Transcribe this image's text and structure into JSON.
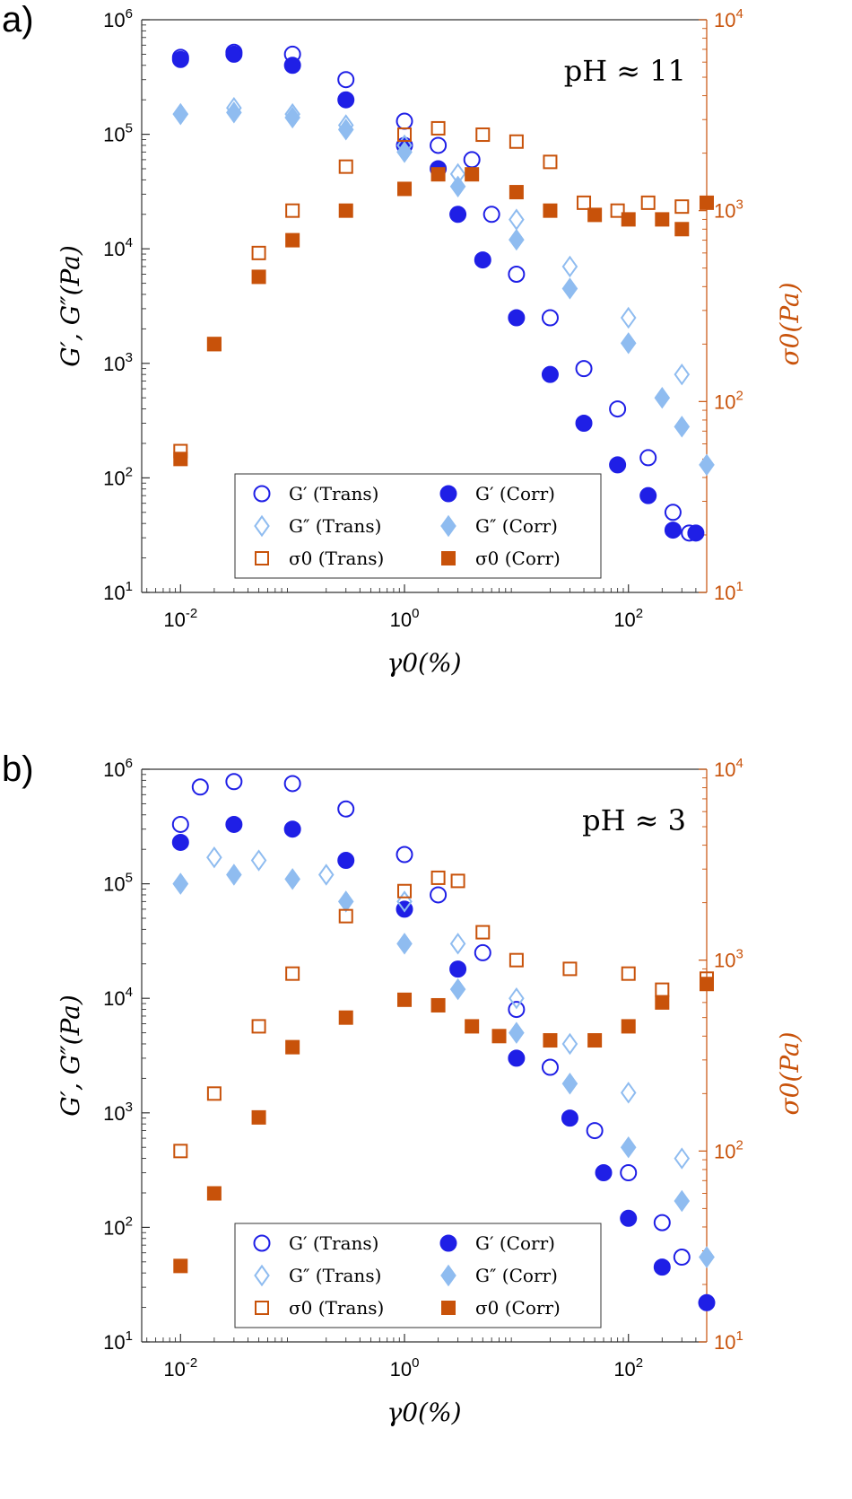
{
  "colors": {
    "g1": "#1f1fe6",
    "g2": "#8fbcf0",
    "sigma": "#c8520a",
    "axis": "#333333"
  },
  "chart_data": [
    {
      "panel_label": "a)",
      "type": "scatter",
      "annotation": "pH ≈ 11",
      "xlabel": "γ0(%)",
      "ylabel": "G′, G″(Pa)",
      "ylabel_right": "σ0(Pa)",
      "x_scale": "log",
      "y_scale": "log",
      "xlim": [
        0.0045,
        500
      ],
      "ylim": [
        10,
        1000000
      ],
      "ylim_right": [
        10,
        10000
      ],
      "x_ticks": [
        {
          "v": 0.01,
          "label": "10-2"
        },
        {
          "v": 1,
          "label": "10^0"
        },
        {
          "v": 100,
          "label": "10^2"
        }
      ],
      "y_ticks": [
        {
          "v": 10,
          "label": "10^1"
        },
        {
          "v": 100,
          "label": "10^2"
        },
        {
          "v": 1000,
          "label": "10^3"
        },
        {
          "v": 10000,
          "label": "10^4"
        },
        {
          "v": 100000,
          "label": "10^5"
        },
        {
          "v": 1000000,
          "label": "10^6"
        }
      ],
      "y_right_ticks": [
        {
          "v": 10,
          "label": "10^1"
        },
        {
          "v": 100,
          "label": "10^2"
        },
        {
          "v": 1000,
          "label": "10^3"
        },
        {
          "v": 10000,
          "label": "10^4"
        }
      ],
      "legend": [
        {
          "key": "gp_trans",
          "text": "G′ (Trans)"
        },
        {
          "key": "gp_corr",
          "text": "G′ (Corr)"
        },
        {
          "key": "gpp_trans",
          "text": "G″ (Trans)"
        },
        {
          "key": "gpp_corr",
          "text": "G″ (Corr)"
        },
        {
          "key": "s_trans",
          "text": "σ0 (Trans)"
        },
        {
          "key": "s_corr",
          "text": "σ0 (Corr)"
        }
      ],
      "series": [
        {
          "key": "gp_trans",
          "name": "G′ (Trans)",
          "axis": "left",
          "marker": "circle-open",
          "color_key": "g1",
          "points": [
            [
              0.01,
              470000
            ],
            [
              0.03,
              520000
            ],
            [
              0.1,
              500000
            ],
            [
              0.3,
              300000
            ],
            [
              1,
              130000
            ],
            [
              2,
              80000
            ],
            [
              4,
              60000
            ],
            [
              6,
              20000
            ],
            [
              10,
              6000
            ],
            [
              20,
              2500
            ],
            [
              40,
              900
            ],
            [
              80,
              400
            ],
            [
              150,
              150
            ],
            [
              250,
              50
            ],
            [
              350,
              33
            ]
          ]
        },
        {
          "key": "gp_corr",
          "name": "G′ (Corr)",
          "axis": "left",
          "marker": "circle-filled",
          "color_key": "g1",
          "points": [
            [
              0.01,
              450000
            ],
            [
              0.03,
              500000
            ],
            [
              0.1,
              400000
            ],
            [
              0.3,
              200000
            ],
            [
              1,
              80000
            ],
            [
              2,
              50000
            ],
            [
              3,
              20000
            ],
            [
              5,
              8000
            ],
            [
              10,
              2500
            ],
            [
              20,
              800
            ],
            [
              40,
              300
            ],
            [
              80,
              130
            ],
            [
              150,
              70
            ],
            [
              250,
              35
            ],
            [
              400,
              33
            ]
          ]
        },
        {
          "key": "gpp_trans",
          "name": "G″ (Trans)",
          "axis": "left",
          "marker": "diamond-open",
          "color_key": "g2",
          "points": [
            [
              0.01,
              150000
            ],
            [
              0.03,
              170000
            ],
            [
              0.1,
              150000
            ],
            [
              0.3,
              120000
            ],
            [
              1,
              80000
            ],
            [
              3,
              45000
            ],
            [
              10,
              18000
            ],
            [
              30,
              7000
            ],
            [
              100,
              2500
            ],
            [
              300,
              800
            ]
          ]
        },
        {
          "key": "gpp_corr",
          "name": "G″ (Corr)",
          "axis": "left",
          "marker": "diamond-filled",
          "color_key": "g2",
          "points": [
            [
              0.01,
              150000
            ],
            [
              0.03,
              155000
            ],
            [
              0.1,
              140000
            ],
            [
              0.3,
              110000
            ],
            [
              1,
              70000
            ],
            [
              3,
              35000
            ],
            [
              10,
              12000
            ],
            [
              30,
              4500
            ],
            [
              100,
              1500
            ],
            [
              200,
              500
            ],
            [
              300,
              280
            ],
            [
              500,
              130
            ]
          ]
        },
        {
          "key": "s_trans",
          "name": "σ0 (Trans)",
          "axis": "right",
          "marker": "square-open",
          "color_key": "sigma",
          "points": [
            [
              0.01,
              55
            ],
            [
              0.02,
              200
            ],
            [
              0.05,
              600
            ],
            [
              0.1,
              1000
            ],
            [
              0.3,
              1700
            ],
            [
              1,
              2500
            ],
            [
              2,
              2700
            ],
            [
              5,
              2500
            ],
            [
              10,
              2300
            ],
            [
              20,
              1800
            ],
            [
              40,
              1100
            ],
            [
              80,
              1000
            ],
            [
              150,
              1100
            ],
            [
              300,
              1050
            ]
          ]
        },
        {
          "key": "s_corr",
          "name": "σ0 (Corr)",
          "axis": "right",
          "marker": "square-filled",
          "color_key": "sigma",
          "points": [
            [
              0.01,
              50
            ],
            [
              0.02,
              200
            ],
            [
              0.05,
              450
            ],
            [
              0.1,
              700
            ],
            [
              0.3,
              1000
            ],
            [
              1,
              1300
            ],
            [
              2,
              1550
            ],
            [
              4,
              1550
            ],
            [
              10,
              1250
            ],
            [
              20,
              1000
            ],
            [
              50,
              950
            ],
            [
              100,
              900
            ],
            [
              200,
              900
            ],
            [
              300,
              800
            ],
            [
              500,
              1100
            ]
          ]
        }
      ]
    },
    {
      "panel_label": "b)",
      "type": "scatter",
      "annotation": "pH ≈ 3",
      "xlabel": "γ0(%)",
      "ylabel": "G′, G″(Pa)",
      "ylabel_right": "σ0(Pa)",
      "x_scale": "log",
      "y_scale": "log",
      "xlim": [
        0.0045,
        500
      ],
      "ylim": [
        10,
        1000000
      ],
      "ylim_right": [
        10,
        10000
      ],
      "x_ticks": [
        {
          "v": 0.01,
          "label": "10-2"
        },
        {
          "v": 1,
          "label": "10^0"
        },
        {
          "v": 100,
          "label": "10^2"
        }
      ],
      "y_ticks": [
        {
          "v": 10,
          "label": "10^1"
        },
        {
          "v": 100,
          "label": "10^2"
        },
        {
          "v": 1000,
          "label": "10^3"
        },
        {
          "v": 10000,
          "label": "10^4"
        },
        {
          "v": 100000,
          "label": "10^5"
        },
        {
          "v": 1000000,
          "label": "10^6"
        }
      ],
      "y_right_ticks": [
        {
          "v": 10,
          "label": "10^1"
        },
        {
          "v": 100,
          "label": "10^2"
        },
        {
          "v": 1000,
          "label": "10^3"
        },
        {
          "v": 10000,
          "label": "10^4"
        }
      ],
      "legend": [
        {
          "key": "gp_trans",
          "text": "G′ (Trans)"
        },
        {
          "key": "gp_corr",
          "text": "G′ (Corr)"
        },
        {
          "key": "gpp_trans",
          "text": "G″ (Trans)"
        },
        {
          "key": "gpp_corr",
          "text": "G″ (Corr)"
        },
        {
          "key": "s_trans",
          "text": "σ0 (Trans)"
        },
        {
          "key": "s_corr",
          "text": "σ0 (Corr)"
        }
      ],
      "series": [
        {
          "key": "gp_trans",
          "name": "G′ (Trans)",
          "axis": "left",
          "marker": "circle-open",
          "color_key": "g1",
          "points": [
            [
              0.01,
              330000
            ],
            [
              0.015,
              700000
            ],
            [
              0.03,
              780000
            ],
            [
              0.1,
              750000
            ],
            [
              0.3,
              450000
            ],
            [
              1,
              180000
            ],
            [
              2,
              80000
            ],
            [
              5,
              25000
            ],
            [
              10,
              8000
            ],
            [
              20,
              2500
            ],
            [
              50,
              700
            ],
            [
              100,
              300
            ],
            [
              200,
              110
            ],
            [
              300,
              55
            ]
          ]
        },
        {
          "key": "gp_corr",
          "name": "G′ (Corr)",
          "axis": "left",
          "marker": "circle-filled",
          "color_key": "g1",
          "points": [
            [
              0.01,
              230000
            ],
            [
              0.03,
              330000
            ],
            [
              0.1,
              300000
            ],
            [
              0.3,
              160000
            ],
            [
              1,
              60000
            ],
            [
              3,
              18000
            ],
            [
              10,
              3000
            ],
            [
              30,
              900
            ],
            [
              60,
              300
            ],
            [
              100,
              120
            ],
            [
              200,
              45
            ],
            [
              500,
              22
            ]
          ]
        },
        {
          "key": "gpp_trans",
          "name": "G″ (Trans)",
          "axis": "left",
          "marker": "diamond-open",
          "color_key": "g2",
          "points": [
            [
              0.01,
              100000
            ],
            [
              0.02,
              170000
            ],
            [
              0.05,
              160000
            ],
            [
              0.2,
              120000
            ],
            [
              1,
              70000
            ],
            [
              3,
              30000
            ],
            [
              10,
              10000
            ],
            [
              30,
              4000
            ],
            [
              100,
              1500
            ],
            [
              300,
              400
            ],
            [
              500,
              55
            ]
          ]
        },
        {
          "key": "gpp_corr",
          "name": "G″ (Corr)",
          "axis": "left",
          "marker": "diamond-filled",
          "color_key": "g2",
          "points": [
            [
              0.01,
              100000
            ],
            [
              0.03,
              120000
            ],
            [
              0.1,
              110000
            ],
            [
              0.3,
              70000
            ],
            [
              1,
              30000
            ],
            [
              3,
              12000
            ],
            [
              10,
              5000
            ],
            [
              30,
              1800
            ],
            [
              100,
              500
            ],
            [
              300,
              170
            ],
            [
              500,
              55
            ]
          ]
        },
        {
          "key": "s_trans",
          "name": "σ0 (Trans)",
          "axis": "right",
          "marker": "square-open",
          "color_key": "sigma",
          "points": [
            [
              0.01,
              100
            ],
            [
              0.02,
              200
            ],
            [
              0.05,
              450
            ],
            [
              0.1,
              850
            ],
            [
              0.3,
              1700
            ],
            [
              1,
              2300
            ],
            [
              2,
              2700
            ],
            [
              3,
              2600
            ],
            [
              5,
              1400
            ],
            [
              10,
              1000
            ],
            [
              30,
              900
            ],
            [
              100,
              850
            ],
            [
              200,
              700
            ],
            [
              500,
              800
            ]
          ]
        },
        {
          "key": "s_corr",
          "name": "σ0 (Corr)",
          "axis": "right",
          "marker": "square-filled",
          "color_key": "sigma",
          "points": [
            [
              0.01,
              25
            ],
            [
              0.02,
              60
            ],
            [
              0.05,
              150
            ],
            [
              0.1,
              350
            ],
            [
              0.3,
              500
            ],
            [
              1,
              620
            ],
            [
              2,
              580
            ],
            [
              4,
              450
            ],
            [
              7,
              400
            ],
            [
              20,
              380
            ],
            [
              50,
              380
            ],
            [
              100,
              450
            ],
            [
              200,
              600
            ],
            [
              500,
              750
            ]
          ]
        }
      ]
    }
  ]
}
